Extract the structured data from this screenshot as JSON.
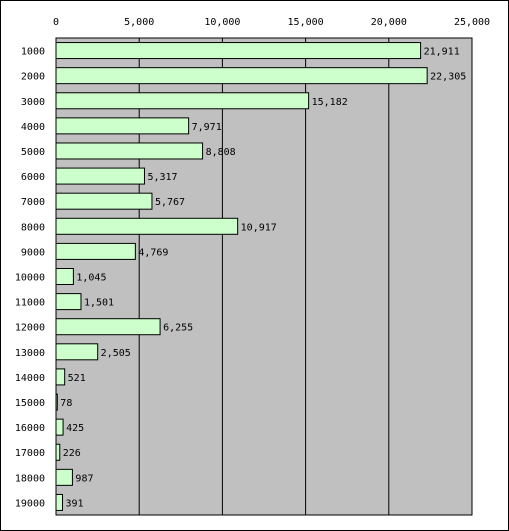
{
  "chart_data": {
    "type": "bar",
    "orientation": "horizontal",
    "categories": [
      "1000",
      "2000",
      "3000",
      "4000",
      "5000",
      "6000",
      "7000",
      "8000",
      "9000",
      "10000",
      "11000",
      "12000",
      "13000",
      "14000",
      "15000",
      "16000",
      "17000",
      "18000",
      "19000"
    ],
    "values": [
      21911,
      22305,
      15182,
      7971,
      8808,
      5317,
      5767,
      10917,
      4769,
      1045,
      1501,
      6255,
      2505,
      521,
      78,
      425,
      226,
      987,
      391
    ],
    "data_labels": [
      "21,911",
      "22,305",
      "15,182",
      "7,971",
      "8,808",
      "5,317",
      "5,767",
      "10,917",
      "4,769",
      "1,045",
      "1,501",
      "6,255",
      "2,505",
      "521",
      "78",
      "425",
      "226",
      "987",
      "391"
    ],
    "x_ticks": [
      "0",
      "5,000",
      "10,000",
      "15,000",
      "20,000",
      "25,000"
    ],
    "xlim": [
      0,
      25000
    ],
    "title": "",
    "xlabel": "",
    "ylabel": "",
    "grid": true,
    "legend": "none",
    "colors": {
      "plot_background": "#c0c0c0",
      "bar_fill": "#ccffcc",
      "bar_stroke": "#000000",
      "gridline": "#000000"
    }
  }
}
